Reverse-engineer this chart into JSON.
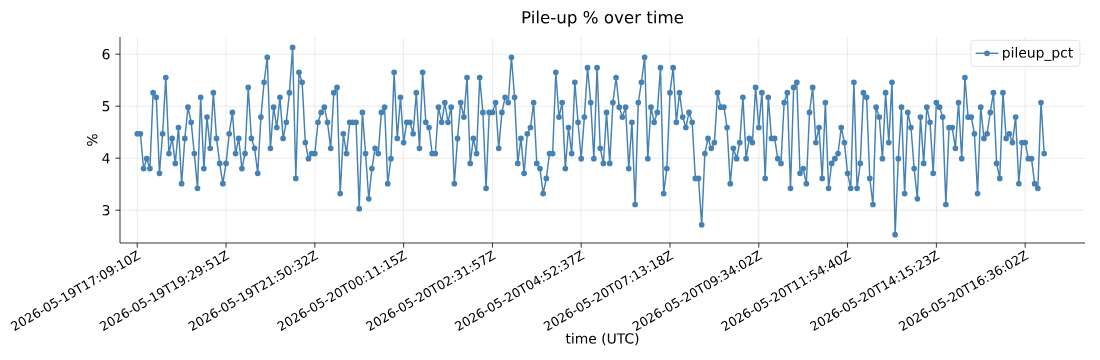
{
  "chart_data": {
    "type": "line",
    "title": "Pile-up % over time",
    "xlabel": "time (UTC)",
    "ylabel": "%",
    "categories": [
      "2026-05-19T17:09:10Z",
      null,
      null,
      null,
      null,
      null,
      null,
      null,
      null,
      null,
      null,
      null,
      null,
      null,
      null,
      null,
      null,
      null,
      null,
      null,
      null,
      null,
      null,
      null,
      null,
      null,
      null,
      null,
      "2026-05-19T19:29:51Z",
      null,
      null,
      null,
      null,
      null,
      null,
      null,
      null,
      null,
      null,
      null,
      null,
      null,
      null,
      null,
      null,
      null,
      null,
      null,
      null,
      null,
      null,
      null,
      null,
      null,
      null,
      null,
      "2026-05-19T21:50:32Z",
      null,
      null,
      null,
      null,
      null,
      null,
      null,
      null,
      null,
      null,
      null,
      null,
      null,
      null,
      null,
      null,
      null,
      null,
      null,
      null,
      null,
      null,
      null,
      null,
      null,
      null,
      null,
      "2026-05-20T00:11:15Z",
      null,
      null,
      null,
      null,
      null,
      null,
      null,
      null,
      null,
      null,
      null,
      null,
      null,
      null,
      null,
      null,
      null,
      null,
      null,
      null,
      null,
      null,
      null,
      null,
      null,
      null,
      null,
      "2026-05-20T02:31:57Z",
      null,
      null,
      null,
      null,
      null,
      null,
      null,
      null,
      null,
      null,
      null,
      null,
      null,
      null,
      null,
      null,
      null,
      null,
      null,
      null,
      null,
      null,
      null,
      null,
      null,
      null,
      null,
      "2026-05-20T04:52:37Z",
      null,
      null,
      null,
      null,
      null,
      null,
      null,
      null,
      null,
      null,
      null,
      null,
      null,
      null,
      null,
      null,
      null,
      null,
      null,
      null,
      null,
      null,
      null,
      null,
      null,
      null,
      null,
      "2026-05-20T07:13:18Z",
      null,
      null,
      null,
      null,
      null,
      null,
      null,
      null,
      null,
      null,
      null,
      null,
      null,
      null,
      null,
      null,
      null,
      null,
      null,
      null,
      null,
      null,
      null,
      null,
      null,
      null,
      null,
      "2026-05-20T09:34:02Z",
      null,
      null,
      null,
      null,
      null,
      null,
      null,
      null,
      null,
      null,
      null,
      null,
      null,
      null,
      null,
      null,
      null,
      null,
      null,
      null,
      null,
      null,
      null,
      null,
      null,
      null,
      null,
      "2026-05-20T11:54:40Z",
      null,
      null,
      null,
      null,
      null,
      null,
      null,
      null,
      null,
      null,
      null,
      null,
      null,
      null,
      null,
      null,
      null,
      null,
      null,
      null,
      null,
      null,
      null,
      null,
      null,
      null,
      null,
      "2026-05-20T14:15:23Z",
      null,
      null,
      null,
      null,
      null,
      null,
      null,
      null,
      null,
      null,
      null,
      null,
      null,
      null,
      null,
      null,
      null,
      null,
      null,
      null,
      null,
      null,
      null,
      null,
      null,
      null,
      null,
      "2026-05-20T16:36:02Z",
      null,
      null,
      null,
      null,
      null,
      null
    ],
    "series": [
      {
        "name": "pileup_pct",
        "color": "#4682b4",
        "values": [
          4.47,
          4.47,
          3.8,
          3.99,
          3.8,
          5.26,
          5.17,
          3.71,
          4.47,
          5.55,
          4.09,
          4.38,
          3.9,
          4.59,
          3.51,
          4.38,
          4.98,
          4.69,
          4.09,
          3.42,
          5.17,
          3.8,
          4.79,
          4.19,
          5.26,
          4.38,
          3.9,
          3.51,
          3.9,
          4.47,
          4.88,
          4.09,
          4.38,
          3.8,
          4.09,
          5.36,
          4.38,
          4.19,
          3.71,
          4.79,
          5.46,
          5.94,
          4.19,
          4.98,
          4.59,
          5.17,
          4.38,
          4.69,
          5.26,
          6.13,
          3.61,
          5.65,
          5.46,
          4.3,
          3.99,
          4.09,
          4.09,
          4.69,
          4.88,
          4.98,
          4.69,
          4.19,
          5.26,
          5.36,
          3.32,
          4.47,
          4.09,
          4.69,
          4.69,
          4.69,
          3.03,
          4.88,
          4.09,
          3.22,
          3.8,
          4.19,
          4.09,
          4.88,
          4.98,
          3.51,
          3.99,
          5.65,
          4.38,
          5.17,
          4.3,
          4.69,
          4.69,
          4.47,
          5.26,
          4.19,
          5.65,
          4.69,
          4.59,
          4.09,
          4.09,
          4.98,
          4.69,
          5.07,
          4.69,
          4.98,
          3.51,
          4.38,
          5.07,
          4.79,
          5.55,
          3.9,
          4.38,
          4.09,
          5.55,
          4.88,
          3.42,
          4.88,
          4.88,
          5.07,
          4.19,
          4.88,
          5.17,
          5.07,
          5.94,
          5.17,
          3.9,
          4.38,
          3.71,
          4.47,
          4.59,
          5.07,
          3.9,
          3.8,
          3.32,
          3.61,
          4.09,
          4.09,
          5.65,
          4.79,
          5.07,
          3.8,
          4.59,
          4.09,
          5.46,
          4.69,
          3.99,
          4.79,
          5.74,
          5.07,
          3.99,
          5.74,
          4.19,
          3.9,
          4.88,
          3.9,
          5.07,
          5.55,
          4.98,
          4.79,
          4.98,
          3.8,
          4.69,
          3.11,
          5.07,
          5.46,
          5.94,
          3.99,
          4.98,
          4.69,
          4.88,
          5.74,
          3.32,
          3.8,
          5.26,
          5.74,
          4.69,
          5.26,
          4.79,
          4.59,
          4.88,
          4.69,
          3.61,
          3.61,
          2.72,
          4.09,
          4.38,
          4.19,
          4.3,
          5.26,
          4.98,
          4.98,
          4.59,
          3.51,
          4.19,
          3.99,
          4.3,
          5.17,
          3.99,
          4.38,
          4.3,
          5.36,
          4.59,
          5.26,
          3.61,
          5.17,
          4.38,
          4.38,
          3.99,
          3.9,
          5.07,
          5.26,
          3.42,
          5.36,
          5.46,
          3.71,
          3.8,
          3.51,
          4.88,
          5.36,
          4.3,
          4.59,
          3.61,
          5.07,
          3.42,
          3.9,
          3.99,
          4.09,
          4.59,
          4.3,
          3.71,
          3.42,
          5.46,
          3.42,
          3.9,
          5.26,
          5.17,
          3.61,
          3.11,
          4.98,
          4.79,
          3.99,
          5.26,
          4.3,
          5.46,
          2.53,
          3.99,
          4.98,
          3.32,
          4.88,
          4.59,
          3.8,
          3.22,
          4.79,
          3.9,
          4.98,
          4.69,
          3.71,
          5.07,
          4.98,
          4.79,
          3.11,
          4.59,
          4.59,
          4.19,
          5.07,
          3.99,
          5.55,
          4.79,
          4.79,
          4.47,
          3.32,
          4.98,
          4.38,
          4.47,
          4.88,
          5.26,
          3.9,
          3.61,
          5.26,
          4.38,
          4.47,
          4.3,
          4.79,
          3.51,
          4.3,
          4.3,
          3.99,
          3.99,
          3.51,
          3.42,
          5.07,
          4.09
        ]
      }
    ],
    "ylim": [
      2.37,
      6.33
    ],
    "yticks": [
      3,
      4,
      5,
      6
    ],
    "grid": true,
    "legend": "top right",
    "marker": "circle",
    "line_style": "solid"
  }
}
